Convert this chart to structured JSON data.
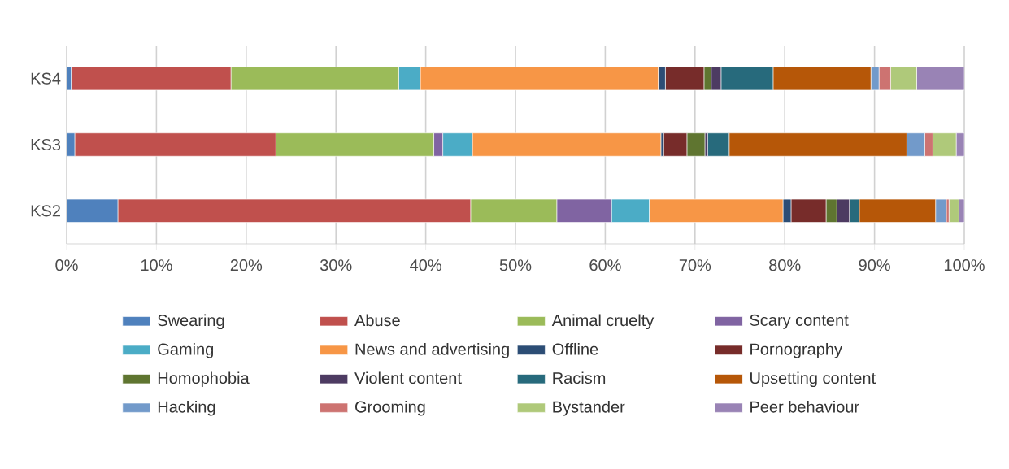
{
  "chart_data": {
    "type": "bar",
    "orientation": "horizontal",
    "stacked": true,
    "categories": [
      "KS4",
      "KS3",
      "KS2"
    ],
    "xlim": [
      0,
      100
    ],
    "xticks": [
      {
        "value": 0,
        "label": "0%"
      },
      {
        "value": 10,
        "label": "10%"
      },
      {
        "value": 20,
        "label": "20%"
      },
      {
        "value": 30,
        "label": "30%"
      },
      {
        "value": 40,
        "label": "40%"
      },
      {
        "value": 50,
        "label": "50%"
      },
      {
        "value": 60,
        "label": "60%"
      },
      {
        "value": 70,
        "label": "70%"
      },
      {
        "value": 80,
        "label": "80%"
      },
      {
        "value": 90,
        "label": "90%"
      },
      {
        "value": 100,
        "label": "100%"
      }
    ],
    "grid": "x",
    "legend": "bottom",
    "series": [
      {
        "name": "Swearing",
        "color": "#4f81bd",
        "values": [
          0.5,
          0.9,
          5.7
        ]
      },
      {
        "name": "Abuse",
        "color": "#c0504d",
        "values": [
          17.8,
          22.4,
          39.3
        ]
      },
      {
        "name": "Animal cruelty",
        "color": "#9bbb59",
        "values": [
          18.7,
          17.6,
          9.6
        ]
      },
      {
        "name": "Scary content",
        "color": "#8064a2",
        "values": [
          0,
          1.0,
          6.1
        ]
      },
      {
        "name": "Gaming",
        "color": "#4bacc6",
        "values": [
          2.4,
          3.3,
          4.2
        ]
      },
      {
        "name": "News and advertising",
        "color": "#f79646",
        "values": [
          26.5,
          21.0,
          14.9
        ]
      },
      {
        "name": "Offline",
        "color": "#2c4d75",
        "values": [
          0.8,
          0.3,
          0.9
        ]
      },
      {
        "name": "Pornography",
        "color": "#772c2a",
        "values": [
          4.3,
          2.6,
          3.9
        ]
      },
      {
        "name": "Homophobia",
        "color": "#5f7530",
        "values": [
          0.8,
          2.0,
          1.2
        ]
      },
      {
        "name": "Violent content",
        "color": "#4d3b62",
        "values": [
          1.1,
          0.3,
          1.4
        ]
      },
      {
        "name": "Racism",
        "color": "#276a7c",
        "values": [
          5.8,
          2.4,
          1.1
        ]
      },
      {
        "name": "Upsetting content",
        "color": "#b65708",
        "values": [
          10.9,
          19.8,
          8.5
        ]
      },
      {
        "name": "Hacking",
        "color": "#729aca",
        "values": [
          0.9,
          2.0,
          1.2
        ]
      },
      {
        "name": "Grooming",
        "color": "#cd7371",
        "values": [
          1.3,
          0.9,
          0.3
        ]
      },
      {
        "name": "Bystander",
        "color": "#afc97a",
        "values": [
          2.9,
          2.6,
          1.1
        ]
      },
      {
        "name": "Peer behaviour",
        "color": "#9983b5",
        "values": [
          5.3,
          0.9,
          0.6
        ]
      }
    ]
  }
}
